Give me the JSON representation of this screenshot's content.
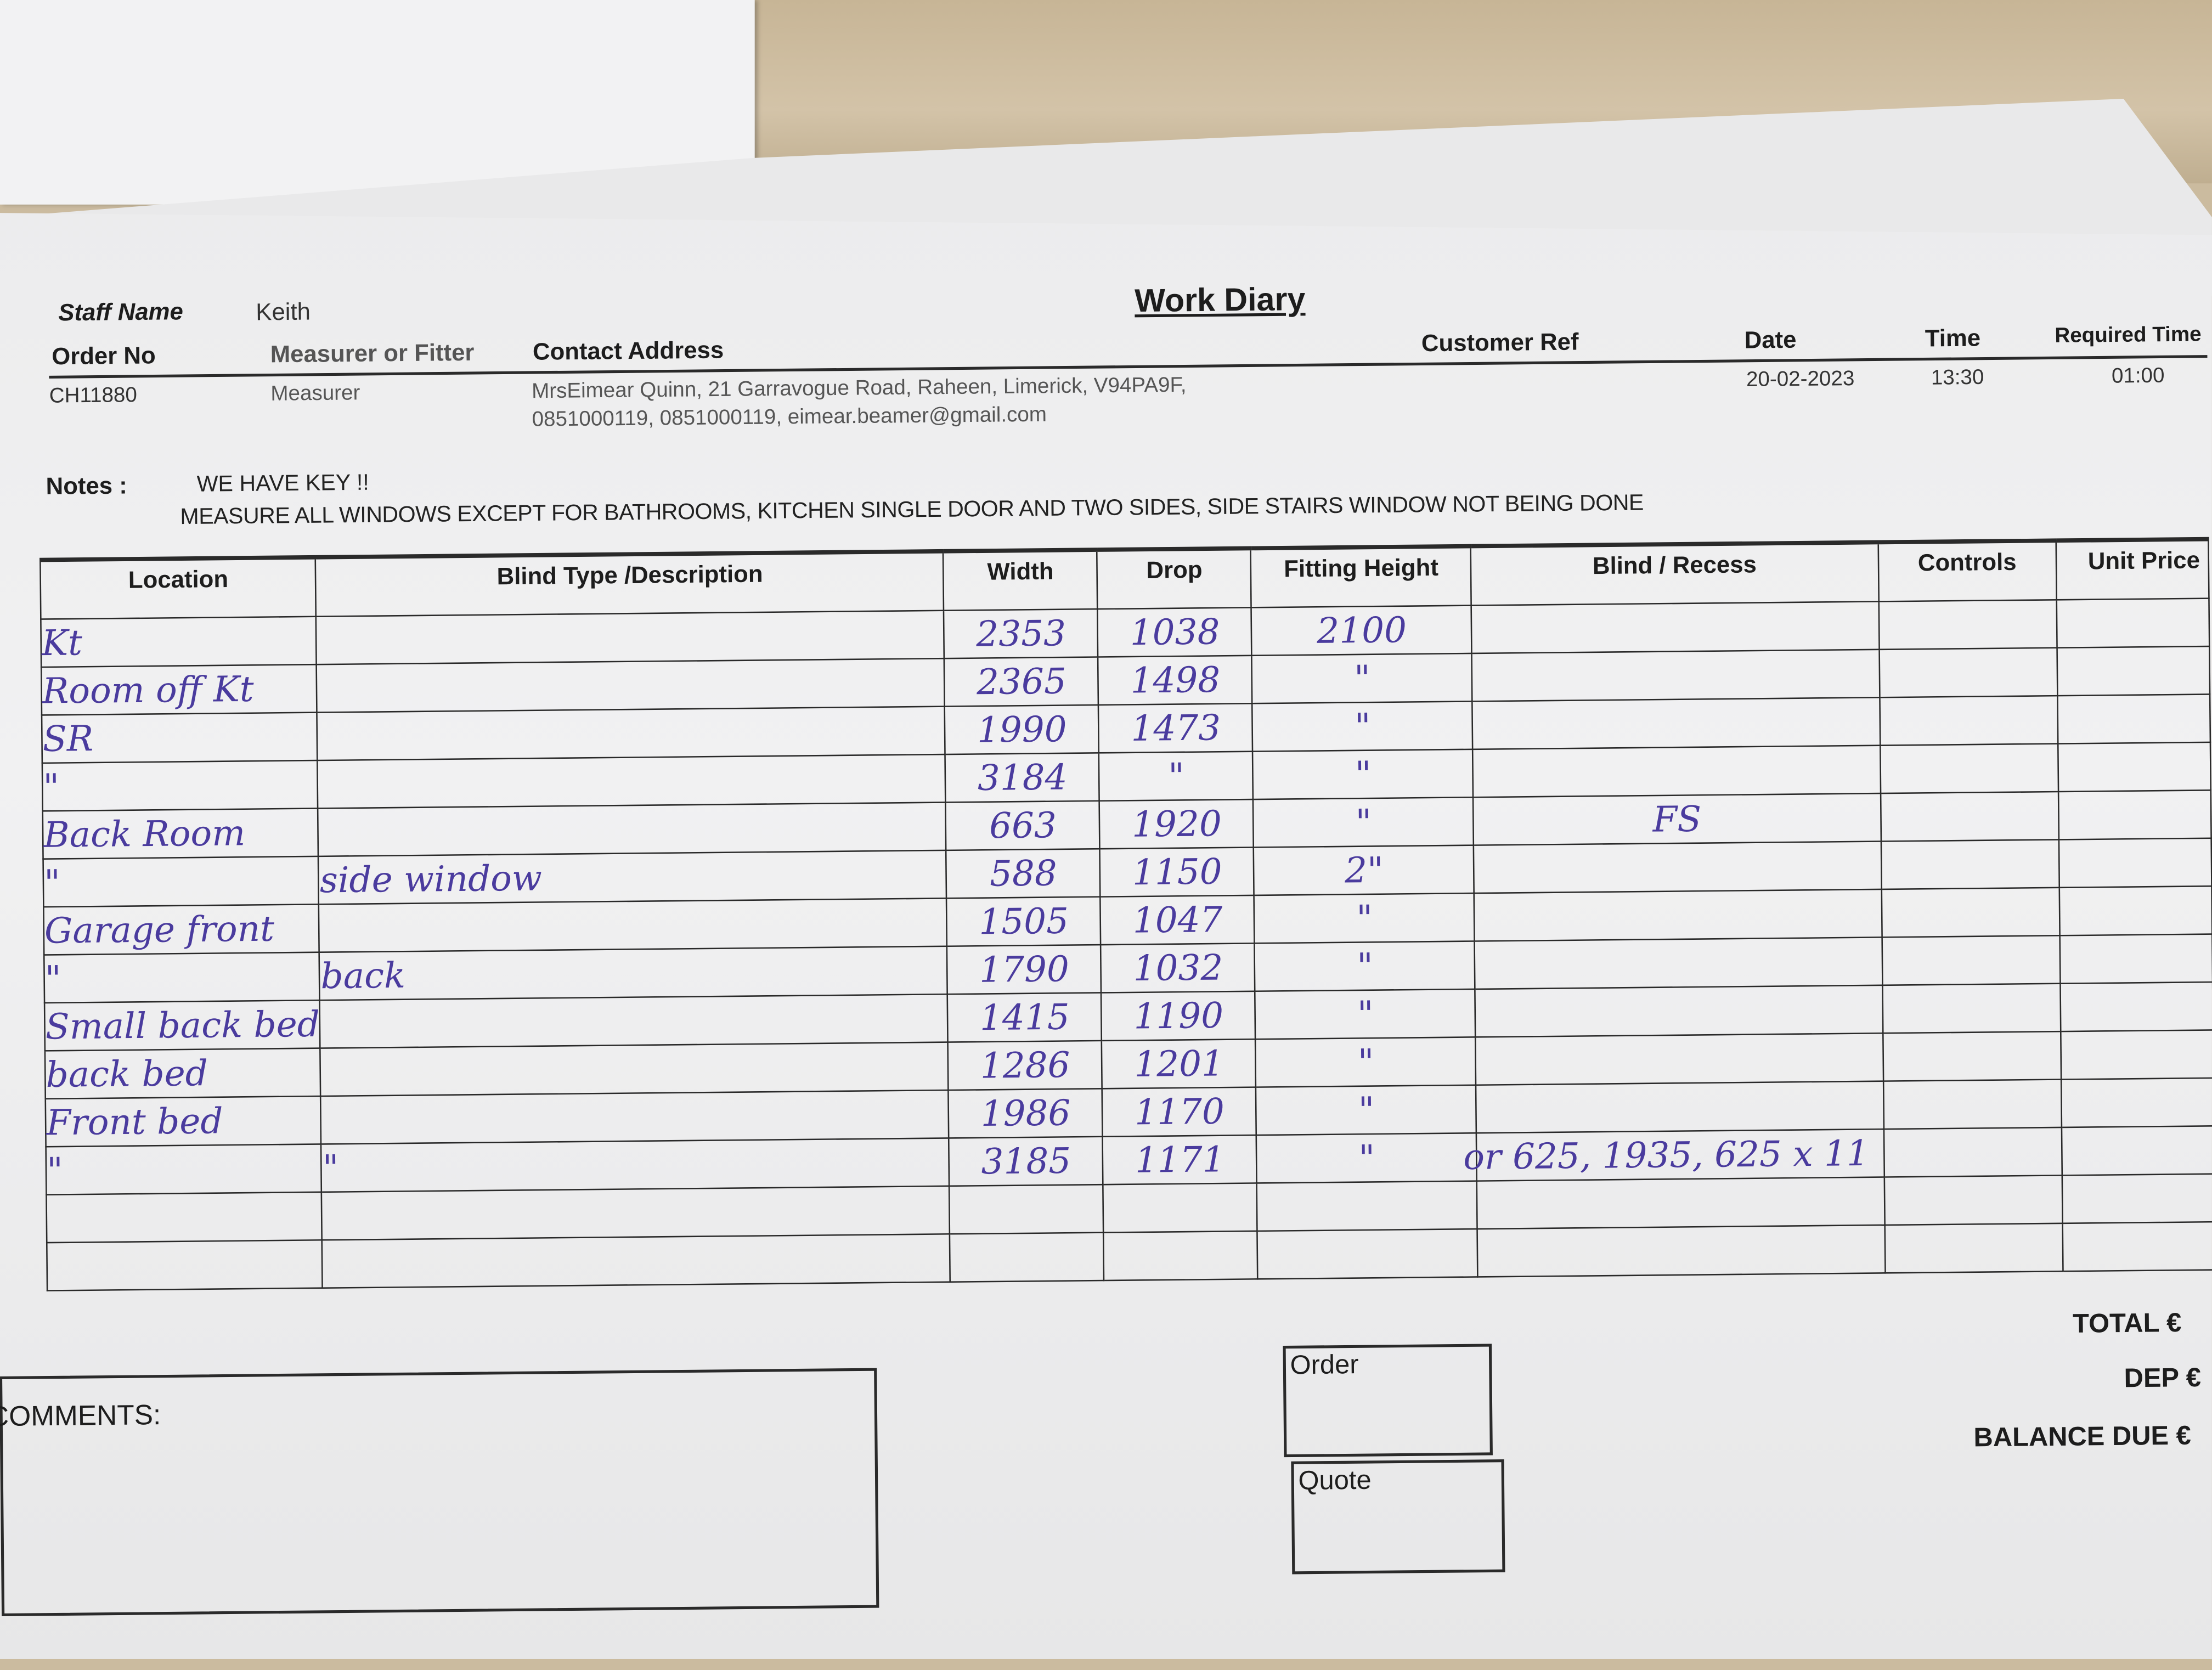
{
  "header": {
    "title": "Work Diary",
    "staff_name_label": "Staff Name",
    "staff_name": "Keith",
    "order_no_label": "Order No",
    "order_no": "CH11880",
    "measurer_label": "Measurer or Fitter",
    "measurer": "Measurer",
    "contact_label": "Contact Address",
    "contact_line1": "MrsEimear Quinn, 21 Garravogue Road, Raheen, Limerick, V94PA9F,",
    "contact_line2": "0851000119, 0851000119, eimear.beamer@gmail.com",
    "customer_ref_label": "Customer Ref",
    "customer_ref": "",
    "date_label": "Date",
    "date": "20-02-2023",
    "time_label": "Time",
    "time": "13:30",
    "required_time_label": "Required Time",
    "required_time": "01:00"
  },
  "notes": {
    "label": "Notes :",
    "line1": "WE HAVE KEY !!",
    "line2": "MEASURE ALL WINDOWS EXCEPT FOR BATHROOMS, KITCHEN SINGLE DOOR AND TWO SIDES, SIDE STAIRS WINDOW NOT BEING DONE"
  },
  "table": {
    "columns": [
      "Location",
      "Blind Type /Description",
      "Width",
      "Drop",
      "Fitting Height",
      "Blind / Recess",
      "Controls",
      "Unit Price"
    ],
    "rows": [
      {
        "location": "Kt",
        "description": "",
        "width": "2353",
        "drop": "1038",
        "fitting_height": "2100",
        "blind_recess": "",
        "controls": "",
        "unit_price": ""
      },
      {
        "location": "Room off Kt",
        "description": "",
        "width": "2365",
        "drop": "1498",
        "fitting_height": "\"",
        "blind_recess": "",
        "controls": "",
        "unit_price": ""
      },
      {
        "location": "SR",
        "description": "",
        "width": "1990",
        "drop": "1473",
        "fitting_height": "\"",
        "blind_recess": "",
        "controls": "",
        "unit_price": ""
      },
      {
        "location": "\"",
        "description": "",
        "width": "3184",
        "drop": "\"",
        "fitting_height": "\"",
        "blind_recess": "",
        "controls": "",
        "unit_price": ""
      },
      {
        "location": "Back Room",
        "description": "",
        "width": "663",
        "drop": "1920",
        "fitting_height": "\"",
        "blind_recess": "FS",
        "controls": "",
        "unit_price": ""
      },
      {
        "location": "\"",
        "description": "side window",
        "width": "588",
        "drop": "1150",
        "fitting_height": "2\"",
        "blind_recess": "",
        "controls": "",
        "unit_price": ""
      },
      {
        "location": "Garage front",
        "description": "",
        "width": "1505",
        "drop": "1047",
        "fitting_height": "\"",
        "blind_recess": "",
        "controls": "",
        "unit_price": ""
      },
      {
        "location": "\"",
        "description": "back",
        "width": "1790",
        "drop": "1032",
        "fitting_height": "\"",
        "blind_recess": "",
        "controls": "",
        "unit_price": ""
      },
      {
        "location": "Small back bed",
        "description": "",
        "width": "1415",
        "drop": "1190",
        "fitting_height": "\"",
        "blind_recess": "",
        "controls": "",
        "unit_price": ""
      },
      {
        "location": "back bed",
        "description": "",
        "width": "1286",
        "drop": "1201",
        "fitting_height": "\"",
        "blind_recess": "",
        "controls": "",
        "unit_price": ""
      },
      {
        "location": "Front bed",
        "description": "",
        "width": "1986",
        "drop": "1170",
        "fitting_height": "\"",
        "blind_recess": "",
        "controls": "",
        "unit_price": ""
      },
      {
        "location": "\"",
        "description": "\"",
        "width": "3185",
        "drop": "1171",
        "fitting_height": "\"",
        "blind_recess": "or 625, 1935, 625 x 11",
        "controls": "",
        "unit_price": ""
      }
    ]
  },
  "footer": {
    "comments_label": "COMMENTS:",
    "order_label": "Order",
    "quote_label": "Quote",
    "total_label": "TOTAL €",
    "dep_label": "DEP €",
    "balance_label": "BALANCE DUE €"
  },
  "colors": {
    "ink": "#4a3b9e",
    "wood": "#cbbb9f",
    "paper": "#efeff0"
  }
}
